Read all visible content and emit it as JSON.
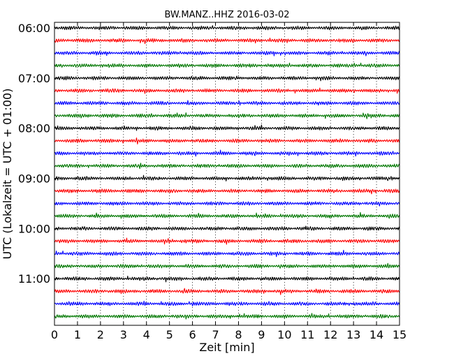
{
  "chart_data": {
    "type": "line",
    "title": "BW.MANZ..HHZ 2016-03-02",
    "xlabel": "Zeit  [min]",
    "ylabel": "UTC (Lokalzeit = UTC + 01:00)",
    "xlim": [
      0,
      15
    ],
    "x_ticks": [
      "0",
      "1",
      "2",
      "3",
      "4",
      "5",
      "6",
      "7",
      "8",
      "9",
      "10",
      "11",
      "12",
      "13",
      "14",
      "15"
    ],
    "y_ticks": [
      "06:00",
      "07:00",
      "08:00",
      "09:00",
      "10:00",
      "11:00"
    ],
    "trace_interval_minutes": 15,
    "trace_count": 24,
    "first_trace_time": "06:00",
    "grid": {
      "x": true,
      "y": false,
      "style": "dotted"
    },
    "trace_colors": [
      "#000000",
      "#ff0000",
      "#0000ff",
      "#007700"
    ]
  }
}
